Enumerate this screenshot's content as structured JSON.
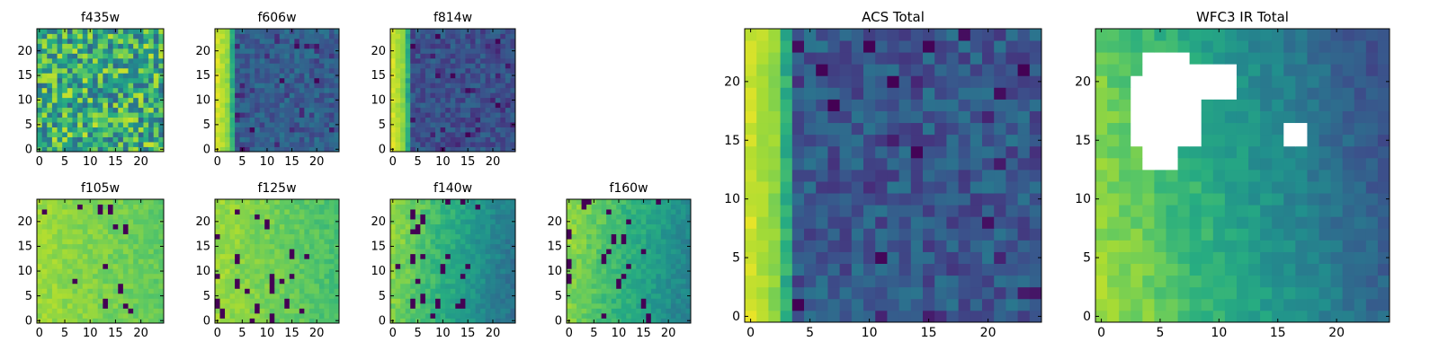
{
  "chart_data": [
    {
      "type": "heatmap",
      "title": "f435w",
      "x_ticks": [
        "0",
        "5",
        "10",
        "15",
        "20"
      ],
      "y_ticks": [
        "0",
        "5",
        "10",
        "15",
        "20"
      ],
      "xlim": [
        0,
        25
      ],
      "ylim": [
        0,
        25
      ],
      "grid_size": 25,
      "colormap": "viridis",
      "pattern": "uniform_noise",
      "mean_level": 0.62,
      "noise_level": 0.3
    },
    {
      "type": "heatmap",
      "title": "f606w",
      "x_ticks": [
        "0",
        "5",
        "10",
        "15",
        "20"
      ],
      "y_ticks": [
        "0",
        "5",
        "10",
        "15",
        "20"
      ],
      "xlim": [
        0,
        25
      ],
      "ylim": [
        0,
        25
      ],
      "grid_size": 25,
      "colormap": "viridis",
      "pattern": "bright_left_edge",
      "bright_columns": 3,
      "mean_level": 0.3,
      "noise_level": 0.1
    },
    {
      "type": "heatmap",
      "title": "f814w",
      "x_ticks": [
        "0",
        "5",
        "10",
        "15",
        "20"
      ],
      "y_ticks": [
        "0",
        "5",
        "10",
        "15",
        "20"
      ],
      "xlim": [
        0,
        25
      ],
      "ylim": [
        0,
        25
      ],
      "grid_size": 25,
      "colormap": "viridis",
      "pattern": "bright_left_edge",
      "bright_columns": 3,
      "mean_level": 0.25,
      "noise_level": 0.1
    },
    {
      "type": "heatmap",
      "title": "f105w",
      "x_ticks": [
        "0",
        "5",
        "10",
        "15",
        "20"
      ],
      "y_ticks": [
        "0",
        "5",
        "10",
        "15",
        "20"
      ],
      "xlim": [
        0,
        25
      ],
      "ylim": [
        0,
        25
      ],
      "grid_size": 25,
      "colormap": "viridis",
      "pattern": "high_with_dropouts",
      "mean_level": 0.85,
      "gradient": 0.1,
      "dropouts": 14
    },
    {
      "type": "heatmap",
      "title": "f125w",
      "x_ticks": [
        "0",
        "5",
        "10",
        "15",
        "20"
      ],
      "y_ticks": [
        "0",
        "5",
        "10",
        "15",
        "20"
      ],
      "xlim": [
        0,
        25
      ],
      "ylim": [
        0,
        25
      ],
      "grid_size": 25,
      "colormap": "viridis",
      "pattern": "high_with_dropouts",
      "mean_level": 0.85,
      "gradient": 0.15,
      "dropouts": 22
    },
    {
      "type": "heatmap",
      "title": "f140w",
      "x_ticks": [
        "0",
        "5",
        "10",
        "15",
        "20"
      ],
      "y_ticks": [
        "0",
        "5",
        "10",
        "15",
        "20"
      ],
      "xlim": [
        0,
        25
      ],
      "ylim": [
        0,
        25
      ],
      "grid_size": 25,
      "colormap": "viridis",
      "pattern": "gradient_with_dropouts",
      "mean_level": 0.8,
      "gradient": 0.35,
      "dropouts": 24
    },
    {
      "type": "heatmap",
      "title": "f160w",
      "x_ticks": [
        "0",
        "5",
        "10",
        "15",
        "20"
      ],
      "y_ticks": [
        "0",
        "5",
        "10",
        "15",
        "20"
      ],
      "xlim": [
        0,
        25
      ],
      "ylim": [
        0,
        25
      ],
      "grid_size": 25,
      "colormap": "viridis",
      "pattern": "gradient_with_dropouts",
      "mean_level": 0.8,
      "gradient": 0.3,
      "dropouts": 20
    },
    {
      "type": "heatmap",
      "title": "ACS Total",
      "x_ticks": [
        "0",
        "5",
        "10",
        "15",
        "20"
      ],
      "y_ticks": [
        "0",
        "5",
        "10",
        "15",
        "20"
      ],
      "xlim": [
        0,
        25
      ],
      "ylim": [
        0,
        25
      ],
      "grid_size": 25,
      "colormap": "viridis",
      "pattern": "bright_left_edge",
      "bright_columns": 3,
      "mean_level": 0.28,
      "noise_level": 0.12
    },
    {
      "type": "heatmap",
      "title": "WFC3 IR Total",
      "x_ticks": [
        "0",
        "5",
        "10",
        "15",
        "20"
      ],
      "y_ticks": [
        "0",
        "5",
        "10",
        "15",
        "20"
      ],
      "xlim": [
        0,
        25
      ],
      "ylim": [
        0,
        25
      ],
      "grid_size": 25,
      "colormap": "viridis",
      "pattern": "diagonal_gradient_with_saturation",
      "mean_level": 0.6,
      "gradient": 0.6,
      "saturated_blobs": 2
    }
  ]
}
